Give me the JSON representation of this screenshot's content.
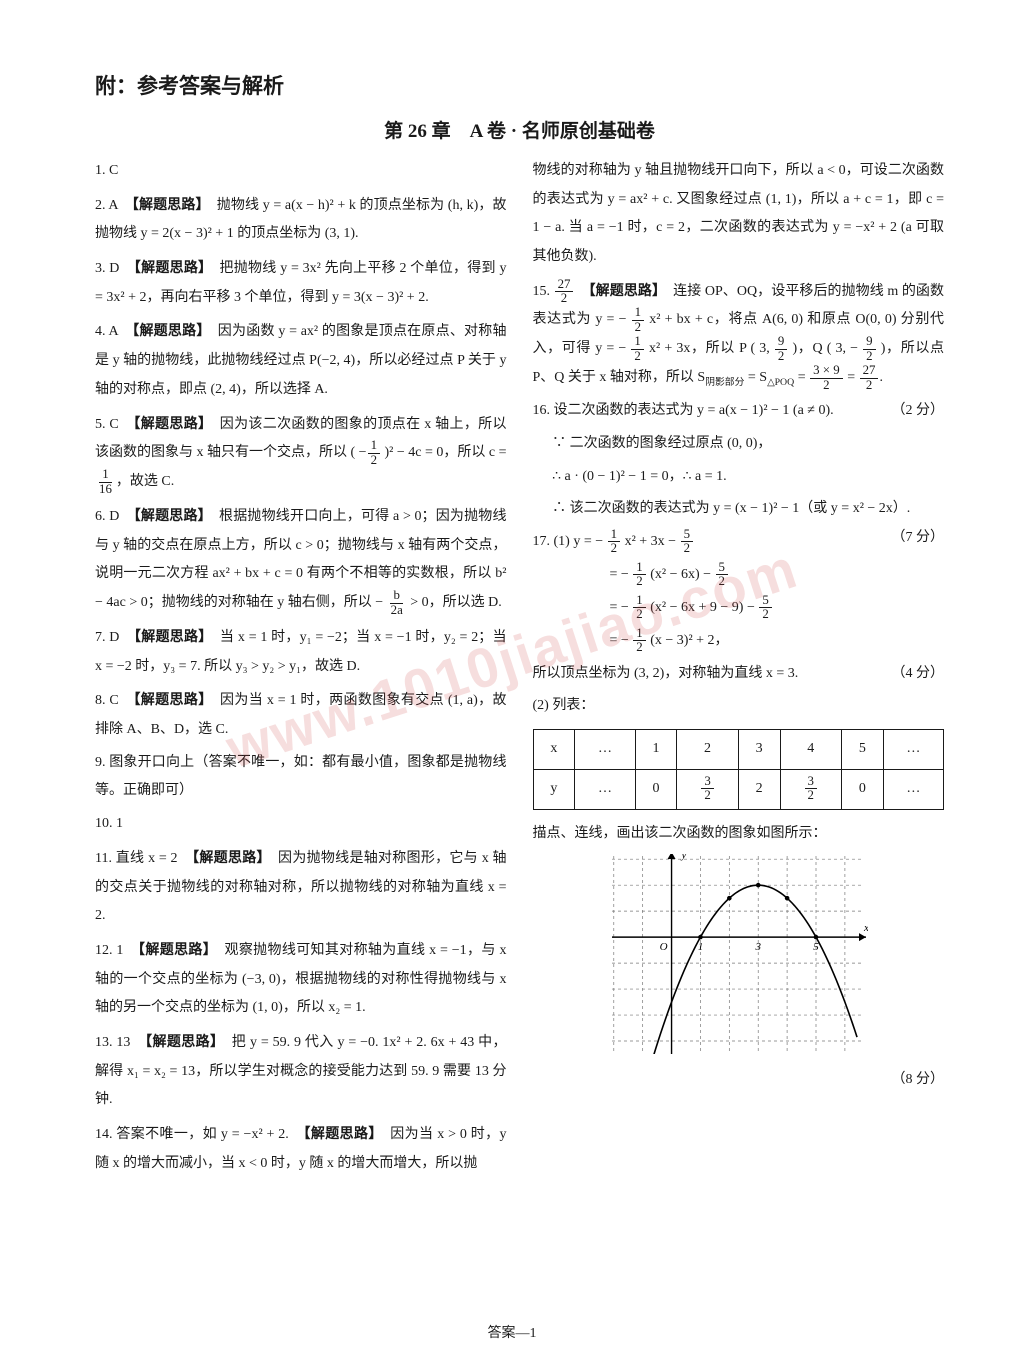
{
  "header": {
    "title": "附：参考答案与解析"
  },
  "chapter": {
    "title": "第 26 章　A 卷 · 名师原创基础卷"
  },
  "watermark": "www.1010jiajiao.com",
  "footer": "答案—1",
  "left": {
    "q1": "1. C",
    "q2_num": "2. A　",
    "q2_hint": "【解题思路】",
    "q2_body": "　抛物线 y = a(x − h)² + k 的顶点坐标为 (h, k)，故抛物线 y = 2(x − 3)² + 1 的顶点坐标为 (3, 1).",
    "q3_num": "3. D　",
    "q3_hint": "【解题思路】",
    "q3_body": "　把抛物线 y = 3x² 先向上平移 2 个单位，得到 y = 3x² + 2，再向右平移 3 个单位，得到 y = 3(x − 3)² + 2.",
    "q4_num": "4. A　",
    "q4_hint": "【解题思路】",
    "q4_body": "　因为函数 y = ax² 的图象是顶点在原点、对称轴是 y 轴的抛物线，此抛物线经过点 P(−2, 4)，所以必经过点 P 关于 y 轴的对称点，即点 (2, 4)，所以选择 A.",
    "q5_num": "5. C　",
    "q5_hint": "【解题思路】",
    "q5_pre": "　因为该二次函数的图象的顶点在 x 轴上，所以该函数的图象与 x 轴只有一个交点，所以 ( −",
    "q5_post": " )² − 4c = 0，所以 c = ",
    "q5_end": "，故选 C.",
    "q6_num": "6. D　",
    "q6_hint": "【解题思路】",
    "q6_body_a": "　根据抛物线开口向上，可得 a > 0；因为抛物线与 y 轴的交点在原点上方，所以 c > 0；抛物线与 x 轴有两个交点，说明一元二次方程 ax² + bx + c = 0 有两个不相等的实数根，所以 b² − 4ac > 0；抛物线的对称轴在 y 轴右侧，所",
    "q6_body_b": "以 − ",
    "q6_body_c": " > 0，所以选 D.",
    "q7_num": "7. D　",
    "q7_hint": "【解题思路】",
    "q7_body": "　当 x = 1 时，y₁ = −2；当 x = −1 时，y₂ = 2；当 x = −2 时，y₃ = 7. 所以 y₃ > y₂ > y₁，故选 D.",
    "q8_num": "8. C　",
    "q8_hint": "【解题思路】",
    "q8_body": "　因为当 x = 1 时，两函数图象有交点 (1, a)，故排除 A、B、D，选 C.",
    "q9": "9. 图象开口向上（答案不唯一，如：都有最小值，图象都是抛物线等。正确即可）",
    "q10": "10. 1",
    "q11_num": "11. 直线 x = 2　",
    "q11_hint": "【解题思路】",
    "q11_body": "　因为抛物线是轴对称图形，它与 x 轴的交点关于抛物线的对称轴对称，所以抛物线的对称轴为直线 x = 2.",
    "q12_num": "12. 1　",
    "q12_hint": "【解题思路】",
    "q12_body": "　观察抛物线可知其对称轴为直线 x = −1，与 x 轴的一个交点的坐标为 (−3, 0)，根据抛物线的对称性得抛物线与 x 轴的另一个交点的坐标为 (1, 0)，所以 x₂ = 1.",
    "q13_num": "13. 13　",
    "q13_hint": "【解题思路】",
    "q13_body": "　把 y = 59. 9 代入 y = −0. 1x² + 2. 6x + 43 中，解得 x₁ = x₂ = 13，所以学生对概念的接受能力达到 59. 9 需要 13 分钟.",
    "q14_num": "14. 答案不唯一，如 y = −x² + 2.　",
    "q14_hint": "【解题思路】",
    "q14_body": "　因为当 x > 0 时，y 随 x 的增大而减小，当 x < 0 时，y 随 x 的增大而增大，所以抛"
  },
  "right": {
    "cont14": "物线的对称轴为 y 轴且抛物线开口向下，所以 a < 0，可设二次函数的表达式为 y = ax² + c. 又图象经过点 (1, 1)，所以 a + c = 1，即 c = 1 − a. 当 a = −1 时，c = 2，二次函数的表达式为 y = −x² + 2 (a 可取其他负数).",
    "q15_num": "15. ",
    "q15_hint": "　【解题思路】",
    "q15_a": "　连接 OP、OQ，设平移后的抛物线 m 的函数表达式为 y = − ",
    "q15_b": " x² + bx + c，将点 A(6, 0) 和原点 O(0, 0) 分别代入，可得 y = − ",
    "q15_c": " x² + 3x，所以 P ( 3, ",
    "q15_d": " )，Q ( 3, − ",
    "q15_e": " )，所以点 P、Q 关于 x 轴对称，所以 S",
    "q15_sub": "阴影部分",
    "q15_f": " = S",
    "q15_sub2": "△POQ",
    "q15_g": " = ",
    "q15_h": " = ",
    "q15_i": ".",
    "q16a": "16. 设二次函数的表达式为 y = a(x − 1)² − 1 (a ≠ 0).",
    "q16a_score": "（2 分）",
    "q16b": "∵ 二次函数的图象经过原点 (0, 0)，",
    "q16c": "∴ a · (0 − 1)² − 1 = 0，∴ a = 1.",
    "q16d": "∴ 该二次函数的表达式为 y = (x − 1)² − 1（或 y = x² − 2x）.",
    "q16d_score": "（7 分）",
    "q17_head": "17. (1) y = − ",
    "q17_head2": " x² + 3x − ",
    "q17_line2a": "= − ",
    "q17_line2b": " (x² − 6x) − ",
    "q17_line3a": "= − ",
    "q17_line3b": " (x² − 6x + 9 − 9) − ",
    "q17_line4a": "= − ",
    "q17_line4b": " (x − 3)² + 2，",
    "q17_vertex": "所以顶点坐标为 (3, 2)，对称轴为直线 x = 3.",
    "q17_vertex_score": "（4 分）",
    "q17_list": "(2) 列表：",
    "table_headers": [
      "x",
      "…",
      "1",
      "2",
      "3",
      "4",
      "5",
      "…"
    ],
    "table_row_y": [
      "y",
      "…",
      "0",
      "3/2",
      "2",
      "3/2",
      "0",
      "…"
    ],
    "caption": "描点、连线，画出该二次函数的图象如图所示：",
    "graph": {
      "xmin": -2.2,
      "xmax": 6.8,
      "ymin": -4.5,
      "ymax": 3.2,
      "xticks": [
        1,
        3,
        5
      ],
      "parabola_a": -0.5,
      "parabola_h": 3,
      "parabola_k": 2,
      "dot_points": [
        [
          1,
          0
        ],
        [
          2,
          1.5
        ],
        [
          3,
          2
        ],
        [
          4,
          1.5
        ],
        [
          5,
          0
        ]
      ],
      "grid_color": "#777",
      "axis_color": "#000",
      "curve_color": "#000",
      "bg": "#ffffff",
      "font_size": 11
    },
    "q17_score": "（8 分）"
  }
}
